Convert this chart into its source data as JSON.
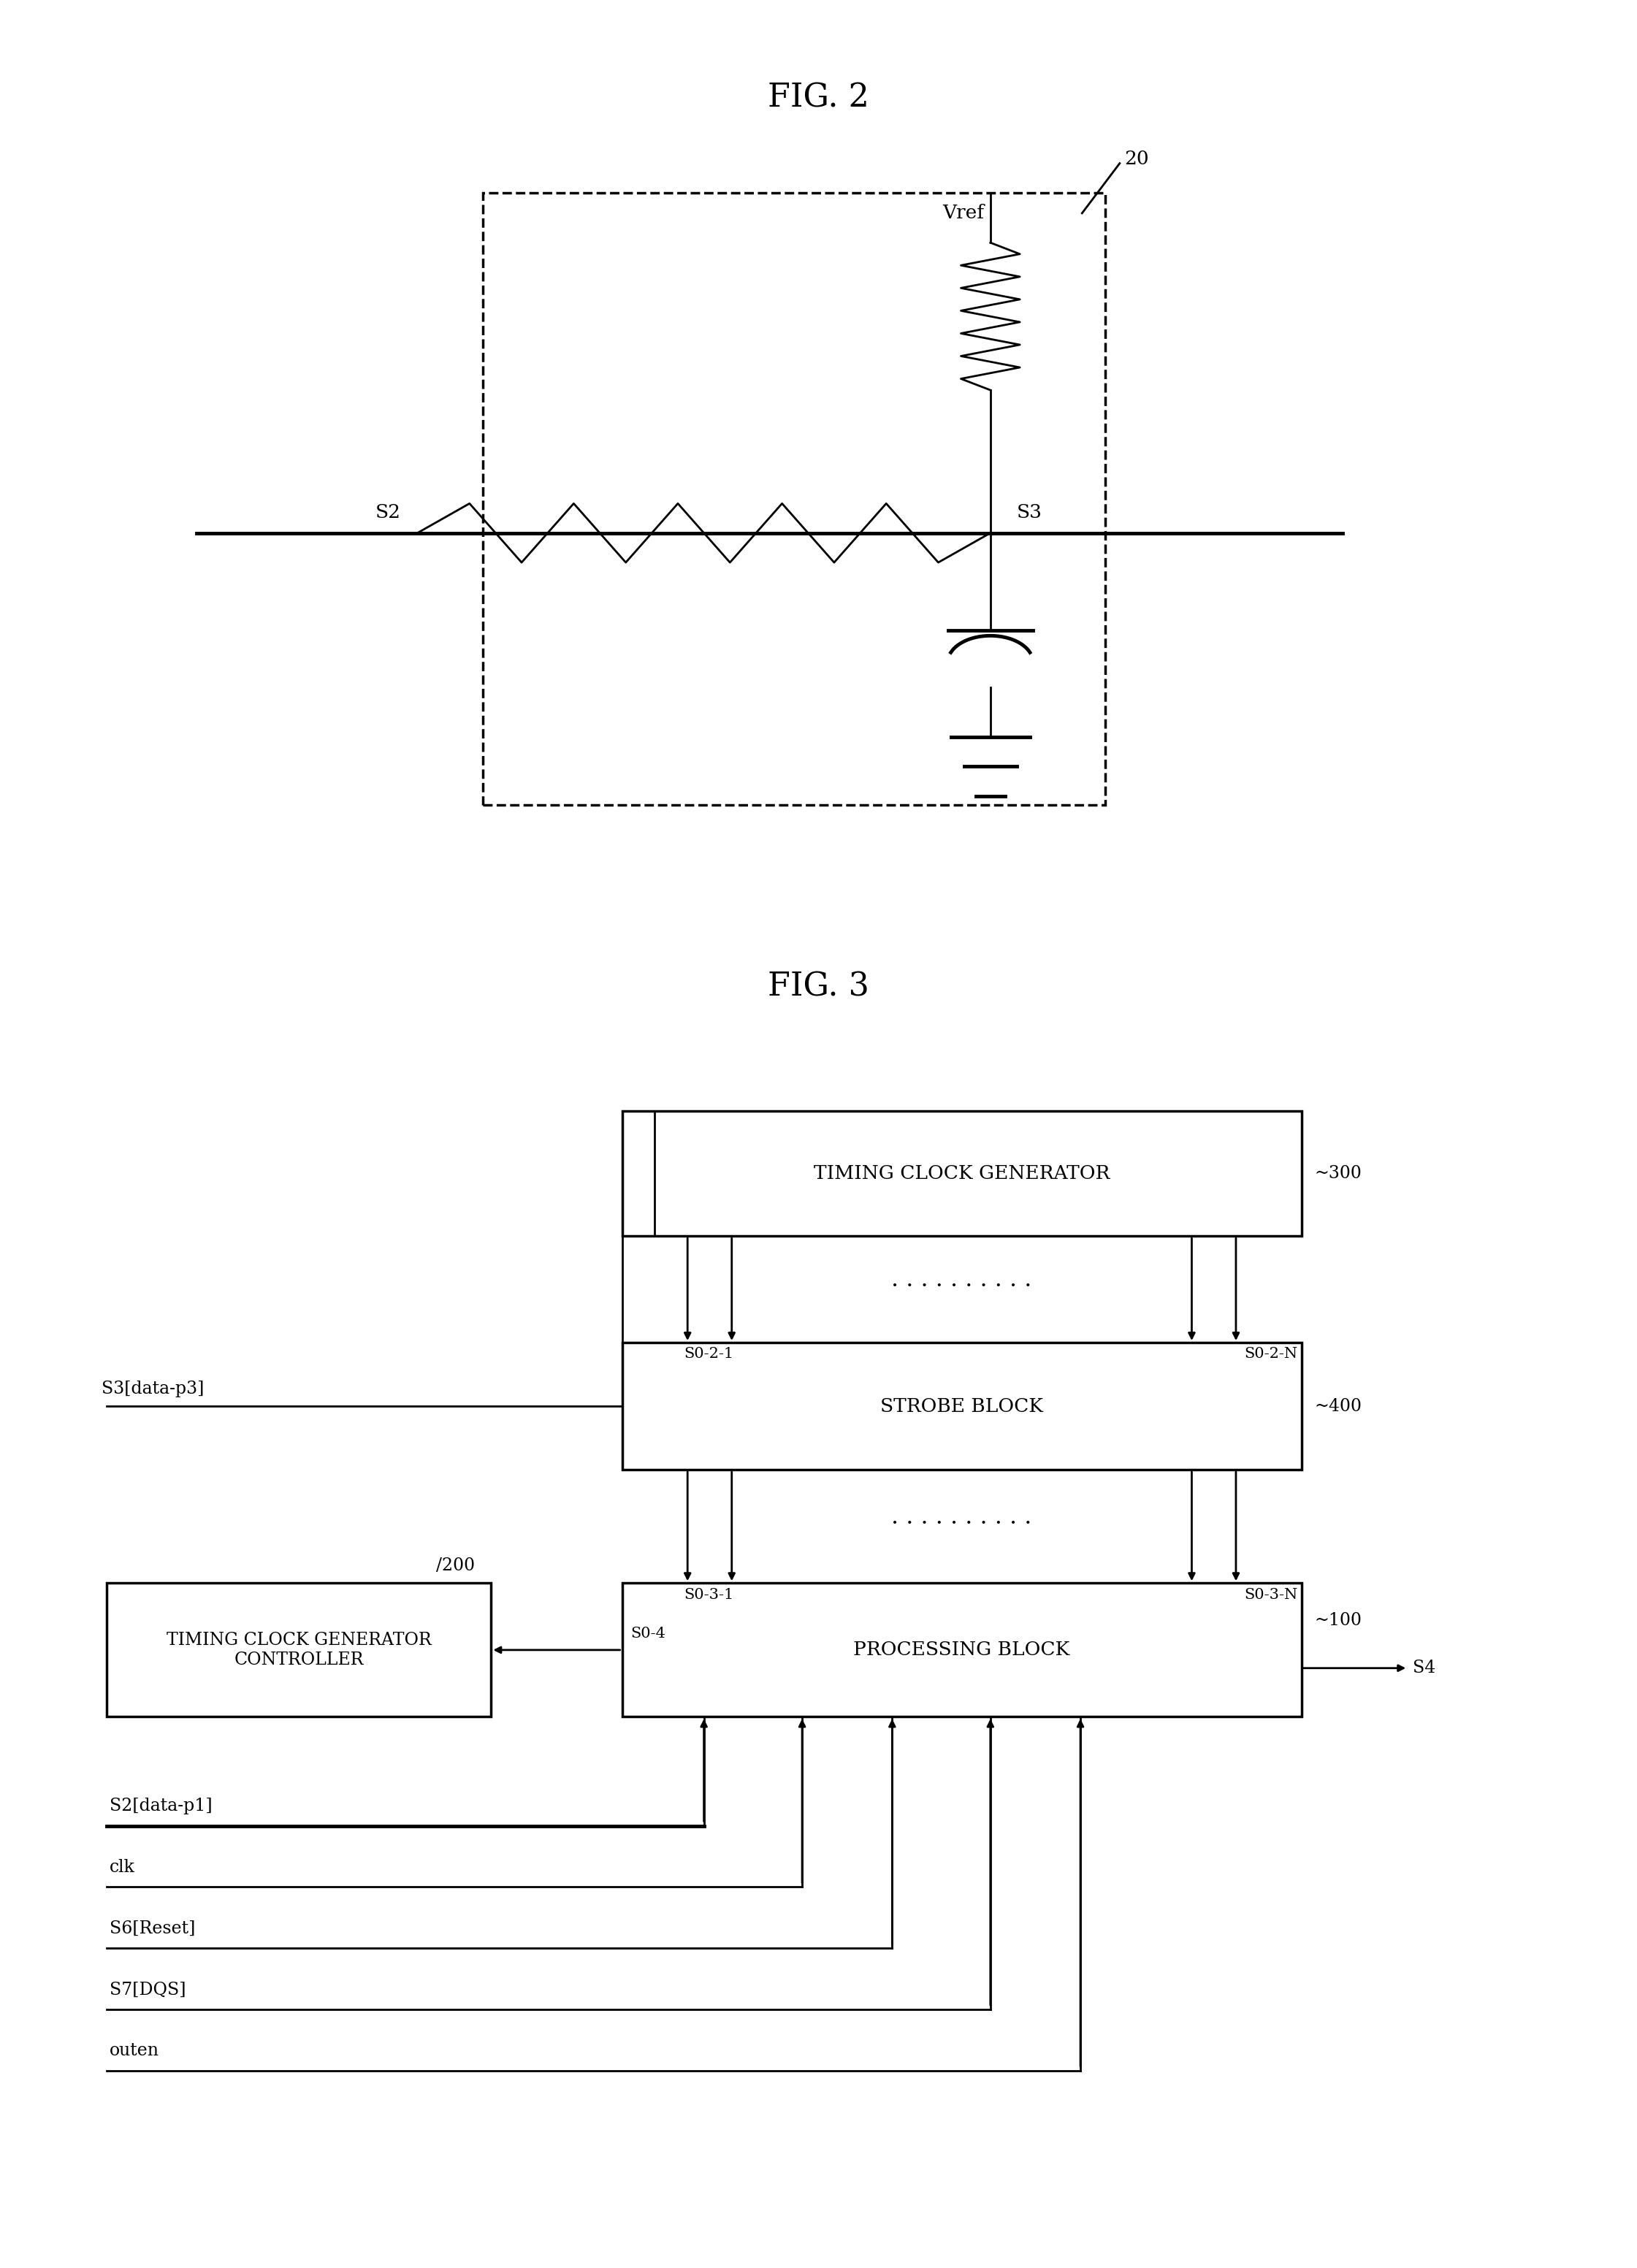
{
  "fig2_title": "FIG. 2",
  "fig3_title": "FIG. 3",
  "bg_color": "#ffffff",
  "line_color": "#000000",
  "fig2": {
    "label_20": "20",
    "label_vref": "Vref",
    "label_S2": "S2",
    "label_S3": "S3"
  },
  "fig3": {
    "tcg_label": "TIMING CLOCK GENERATOR",
    "tcg_ref": "~300",
    "strobe_label": "STROBE BLOCK",
    "strobe_ref": "~400",
    "proc_label": "PROCESSING BLOCK",
    "proc_ref": "~100",
    "ctrl_label": "TIMING CLOCK GENERATOR\nCONTROLLER",
    "ctrl_ref": "200",
    "s0_2_1": "S0-2-1",
    "s0_2_n": "S0-2-N",
    "s0_3_1": "S0-3-1",
    "s0_3_n": "S0-3-N",
    "s0_4": "S0-4",
    "s3_label": "S3[data-p3]",
    "s2_label": "S2[data-p1]",
    "clk_label": "clk",
    "s6_label": "S6[Reset]",
    "s7_label": "S7[DQS]",
    "outen_label": "outen",
    "s4_label": "S4"
  }
}
